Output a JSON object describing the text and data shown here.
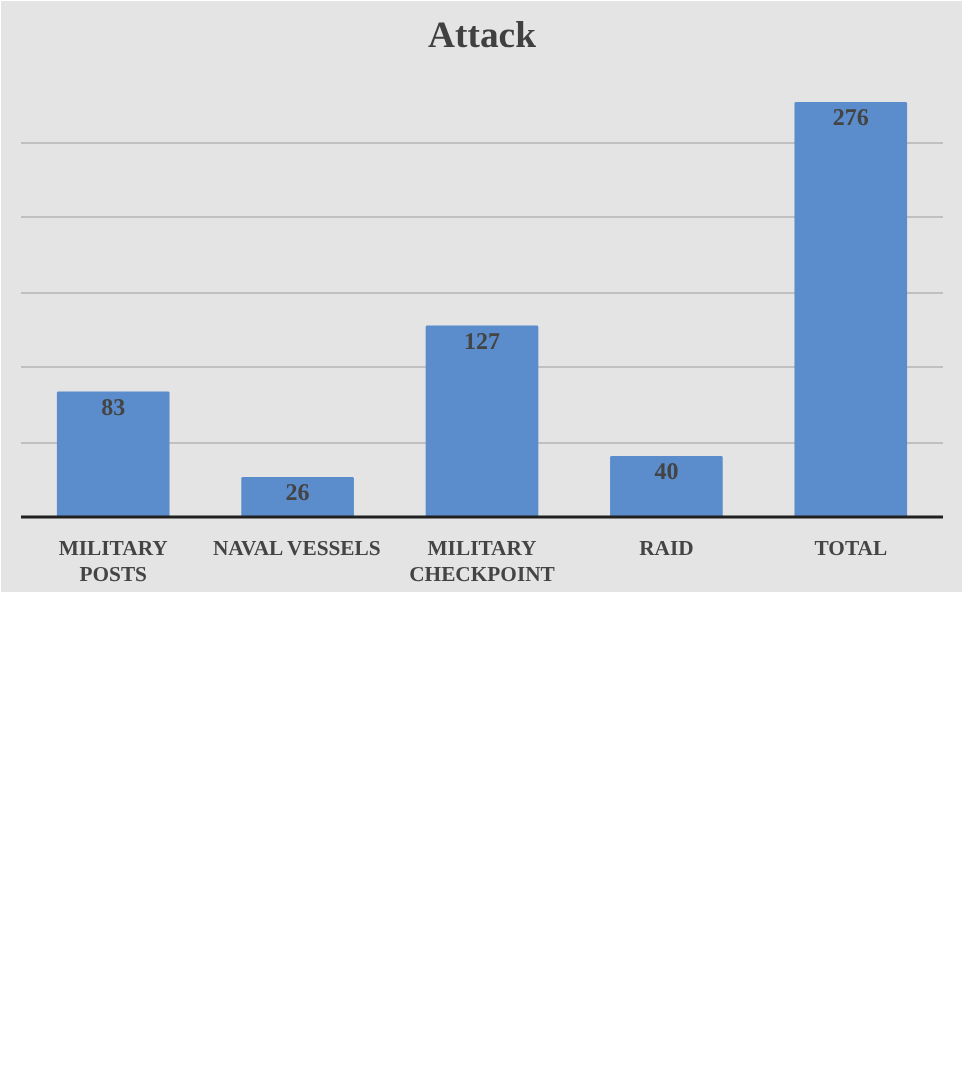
{
  "chart_data": {
    "type": "bar",
    "title": "Attack",
    "categories": [
      "MILITARY POSTS",
      "NAVAL VESSELS",
      "MILITARY CHECKPOINT",
      "RAID",
      "TOTAL"
    ],
    "values": [
      83,
      26,
      127,
      40,
      276
    ],
    "color": "#5b8ccb",
    "ylim": [
      0,
      300
    ],
    "yticks": [
      {
        "value": 0,
        "label": null
      },
      {
        "value": 50,
        "label": null
      },
      {
        "value": 100,
        "label": null
      },
      {
        "value": 150,
        "label": null
      },
      {
        "value": 200,
        "label": null
      },
      {
        "value": 250,
        "label": null
      },
      {
        "value": 300,
        "label": null
      }
    ],
    "tick_labels": "x",
    "grid": "y",
    "data_labels": true
  }
}
